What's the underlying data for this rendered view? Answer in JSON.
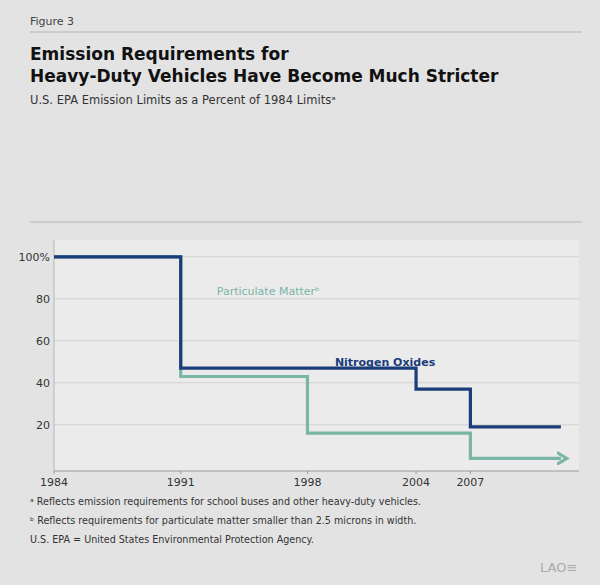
{
  "chart_data": {
    "type": "line",
    "title": [
      "Emission Requirements for",
      "Heavy-Duty Vehicles Have Become Much Stricter"
    ],
    "subtitle": "U.S. EPA Emission Limits as a Percent of 1984 Limitsᵃ",
    "annotations": [
      "Figure 3",
      "ᵃ Reflects emission requirements for school buses and other heavy-duty vehicles.",
      "ᵇ Reflects requirements for particulate matter smaller than 2.5 microns in width.",
      "U.S. EPA = United States Environmental Protection Agency.",
      "LAO≡"
    ],
    "series": [
      {
        "name": "Particulate Matterᵇ",
        "color": "#7ab5a5",
        "x": [
          1984,
          1991,
          1991,
          1998,
          1998,
          2007,
          2007,
          2012
        ],
        "values": [
          100,
          100,
          43,
          43,
          16,
          16,
          4,
          4
        ]
      },
      {
        "name": "Nitrogen Oxides",
        "color": "#1b3d7a",
        "x": [
          1984,
          1991,
          1991,
          1998,
          1998,
          2004,
          2004,
          2007,
          2007,
          2012
        ],
        "values": [
          100,
          100,
          47,
          47,
          47,
          47,
          37,
          37,
          19,
          19
        ]
      }
    ],
    "xlim": [
      1984,
      2013
    ],
    "xticks": [
      1984,
      1991,
      1998,
      2004,
      2007
    ],
    "ylim": [
      -2,
      108
    ],
    "yticks": [
      20,
      40,
      60,
      80,
      {
        "value": 100,
        "label": "100%"
      }
    ],
    "grid": true
  }
}
